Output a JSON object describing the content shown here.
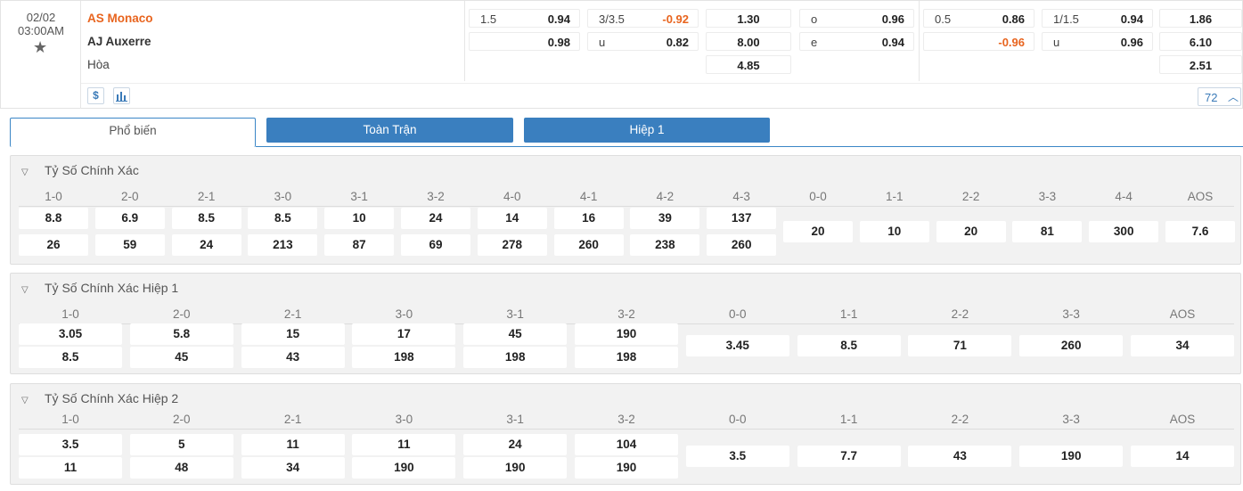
{
  "match": {
    "date": "02/02",
    "time": "03:00AM",
    "star_icon": "star-icon",
    "home": "AS Monaco",
    "away": "AJ Auxerre",
    "draw": "Hòa",
    "fulltime": {
      "handicap": {
        "line": "1.5",
        "home": "0.94",
        "away": "0.98"
      },
      "overunder": {
        "line": "3/3.5",
        "over": "-0.92",
        "u_label": "u",
        "under": "0.82"
      },
      "x12": {
        "home": "1.30",
        "away": "8.00",
        "draw": "4.85"
      },
      "oddeven": {
        "o_label": "o",
        "odd": "0.96",
        "e_label": "e",
        "even": "0.94"
      }
    },
    "half1": {
      "handicap": {
        "line": "0.5",
        "home": "0.86",
        "away": "-0.96"
      },
      "overunder": {
        "line": "1/1.5",
        "over": "0.94",
        "u_label": "u",
        "under": "0.96"
      },
      "x12": {
        "home": "1.86",
        "away": "6.10",
        "draw": "2.51"
      }
    },
    "icons": {
      "dollar": "$",
      "chart": "bar-chart-icon"
    },
    "more_count": "72",
    "colors": {
      "home_team": "#e8641e",
      "negative": "#e8641e",
      "accent": "#3a7fbf"
    }
  },
  "tabs": [
    "Phổ biến",
    "Toàn Trận",
    "Hiệp 1"
  ],
  "sections": [
    {
      "title": "Tỷ Số Chính Xác",
      "pairs": [
        {
          "score": "1-0",
          "home": "8.8",
          "away": "26"
        },
        {
          "score": "2-0",
          "home": "6.9",
          "away": "59"
        },
        {
          "score": "2-1",
          "home": "8.5",
          "away": "24"
        },
        {
          "score": "3-0",
          "home": "8.5",
          "away": "213"
        },
        {
          "score": "3-1",
          "home": "10",
          "away": "87"
        },
        {
          "score": "3-2",
          "home": "24",
          "away": "69"
        },
        {
          "score": "4-0",
          "home": "14",
          "away": "278"
        },
        {
          "score": "4-1",
          "home": "16",
          "away": "260"
        },
        {
          "score": "4-2",
          "home": "39",
          "away": "238"
        },
        {
          "score": "4-3",
          "home": "137",
          "away": "260"
        }
      ],
      "singles": [
        {
          "score": "0-0",
          "value": "20"
        },
        {
          "score": "1-1",
          "value": "10"
        },
        {
          "score": "2-2",
          "value": "20"
        },
        {
          "score": "3-3",
          "value": "81"
        },
        {
          "score": "4-4",
          "value": "300"
        },
        {
          "score": "AOS",
          "value": "7.6"
        }
      ]
    },
    {
      "title": "Tỷ Số Chính Xác Hiệp 1",
      "pairs": [
        {
          "score": "1-0",
          "home": "3.05",
          "away": "8.5"
        },
        {
          "score": "2-0",
          "home": "5.8",
          "away": "45"
        },
        {
          "score": "2-1",
          "home": "15",
          "away": "43"
        },
        {
          "score": "3-0",
          "home": "17",
          "away": "198"
        },
        {
          "score": "3-1",
          "home": "45",
          "away": "198"
        },
        {
          "score": "3-2",
          "home": "190",
          "away": "198"
        }
      ],
      "singles": [
        {
          "score": "0-0",
          "value": "3.45"
        },
        {
          "score": "1-1",
          "value": "8.5"
        },
        {
          "score": "2-2",
          "value": "71"
        },
        {
          "score": "3-3",
          "value": "260"
        },
        {
          "score": "AOS",
          "value": "34"
        }
      ]
    },
    {
      "title": "Tỷ Số Chính Xác Hiệp 2",
      "pairs": [
        {
          "score": "1-0",
          "home": "3.5",
          "away": "11"
        },
        {
          "score": "2-0",
          "home": "5",
          "away": "48"
        },
        {
          "score": "2-1",
          "home": "11",
          "away": "34"
        },
        {
          "score": "3-0",
          "home": "11",
          "away": "190"
        },
        {
          "score": "3-1",
          "home": "24",
          "away": "190"
        },
        {
          "score": "3-2",
          "home": "104",
          "away": "190"
        }
      ],
      "singles": [
        {
          "score": "0-0",
          "value": "3.5"
        },
        {
          "score": "1-1",
          "value": "7.7"
        },
        {
          "score": "2-2",
          "value": "43"
        },
        {
          "score": "3-3",
          "value": "190"
        },
        {
          "score": "AOS",
          "value": "14"
        }
      ]
    }
  ]
}
